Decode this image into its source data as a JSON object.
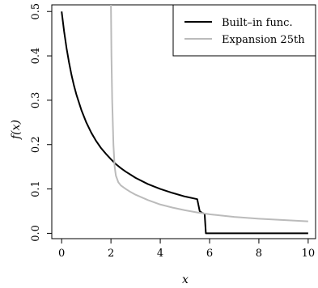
{
  "chart_data": {
    "type": "line",
    "xlabel": "x",
    "ylabel": "f(x)",
    "xlim": [
      -0.4,
      10.3
    ],
    "ylim": [
      -0.012,
      0.515
    ],
    "xticks": [
      0,
      2,
      4,
      6,
      8,
      10
    ],
    "yticks": [
      0.0,
      0.1,
      0.2,
      0.3,
      0.4,
      0.5
    ],
    "xtick_labels": [
      "0",
      "2",
      "4",
      "6",
      "8",
      "10"
    ],
    "ytick_labels": [
      "0.0",
      "0.1",
      "0.2",
      "0.3",
      "0.4",
      "0.5"
    ],
    "grid": false,
    "legend_position": "top-right",
    "series": [
      {
        "name": "Built–in func.",
        "color": "#000000",
        "x": [
          0,
          0.1,
          0.2,
          0.3,
          0.4,
          0.5,
          0.6,
          0.8,
          1.0,
          1.2,
          1.4,
          1.6,
          1.8,
          2.0,
          2.2,
          2.4,
          2.6,
          2.8,
          3.0,
          3.5,
          4.0,
          4.5,
          5.0,
          5.5,
          5.6,
          5.7,
          5.8,
          5.85,
          5.9,
          6.0,
          7.0,
          8.0,
          9.0,
          10.0
        ],
        "y": [
          0.5,
          0.455,
          0.417,
          0.385,
          0.357,
          0.333,
          0.3125,
          0.278,
          0.25,
          0.227,
          0.208,
          0.192,
          0.179,
          0.167,
          0.156,
          0.147,
          0.139,
          0.132,
          0.125,
          0.111,
          0.1,
          0.091,
          0.083,
          0.077,
          0.05,
          0.046,
          0.044,
          0.0,
          0.0,
          0.0,
          0.0,
          0.0,
          0.0,
          0.0
        ]
      },
      {
        "name": "Expansion 25th",
        "color": "#bbbbbb",
        "x": [
          2.0,
          2.02,
          2.05,
          2.1,
          2.15,
          2.2,
          2.3,
          2.4,
          2.6,
          2.8,
          3.0,
          3.5,
          4.0,
          4.5,
          5.0,
          5.5,
          6.0,
          7.0,
          8.0,
          9.0,
          10.0
        ],
        "y": [
          0.515,
          0.4,
          0.3,
          0.2,
          0.15,
          0.13,
          0.115,
          0.108,
          0.1,
          0.093,
          0.087,
          0.075,
          0.065,
          0.058,
          0.052,
          0.047,
          0.043,
          0.037,
          0.033,
          0.03,
          0.027
        ]
      }
    ]
  }
}
